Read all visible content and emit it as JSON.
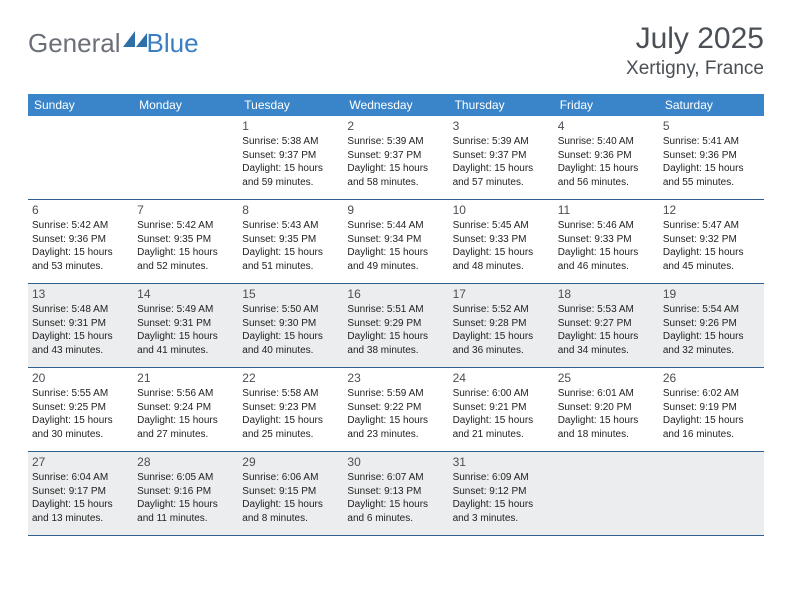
{
  "brand": {
    "part1": "General",
    "part2": "Blue"
  },
  "title": {
    "month_year": "July 2025",
    "location": "Xertigny, France"
  },
  "colors": {
    "header_bg": "#3a85c9",
    "header_text": "#ffffff",
    "border": "#2e5f8e",
    "shaded": "#ecedee",
    "brand_gray": "#6b7078",
    "brand_blue": "#3a7fc4",
    "text_dark": "#4a5056"
  },
  "weekdays": [
    "Sunday",
    "Monday",
    "Tuesday",
    "Wednesday",
    "Thursday",
    "Friday",
    "Saturday"
  ],
  "start_weekday_index": 2,
  "days": [
    {
      "n": 1,
      "sunrise": "5:38 AM",
      "sunset": "9:37 PM",
      "daylight": "15 hours and 59 minutes."
    },
    {
      "n": 2,
      "sunrise": "5:39 AM",
      "sunset": "9:37 PM",
      "daylight": "15 hours and 58 minutes."
    },
    {
      "n": 3,
      "sunrise": "5:39 AM",
      "sunset": "9:37 PM",
      "daylight": "15 hours and 57 minutes."
    },
    {
      "n": 4,
      "sunrise": "5:40 AM",
      "sunset": "9:36 PM",
      "daylight": "15 hours and 56 minutes."
    },
    {
      "n": 5,
      "sunrise": "5:41 AM",
      "sunset": "9:36 PM",
      "daylight": "15 hours and 55 minutes."
    },
    {
      "n": 6,
      "sunrise": "5:42 AM",
      "sunset": "9:36 PM",
      "daylight": "15 hours and 53 minutes."
    },
    {
      "n": 7,
      "sunrise": "5:42 AM",
      "sunset": "9:35 PM",
      "daylight": "15 hours and 52 minutes."
    },
    {
      "n": 8,
      "sunrise": "5:43 AM",
      "sunset": "9:35 PM",
      "daylight": "15 hours and 51 minutes."
    },
    {
      "n": 9,
      "sunrise": "5:44 AM",
      "sunset": "9:34 PM",
      "daylight": "15 hours and 49 minutes."
    },
    {
      "n": 10,
      "sunrise": "5:45 AM",
      "sunset": "9:33 PM",
      "daylight": "15 hours and 48 minutes."
    },
    {
      "n": 11,
      "sunrise": "5:46 AM",
      "sunset": "9:33 PM",
      "daylight": "15 hours and 46 minutes."
    },
    {
      "n": 12,
      "sunrise": "5:47 AM",
      "sunset": "9:32 PM",
      "daylight": "15 hours and 45 minutes."
    },
    {
      "n": 13,
      "sunrise": "5:48 AM",
      "sunset": "9:31 PM",
      "daylight": "15 hours and 43 minutes."
    },
    {
      "n": 14,
      "sunrise": "5:49 AM",
      "sunset": "9:31 PM",
      "daylight": "15 hours and 41 minutes."
    },
    {
      "n": 15,
      "sunrise": "5:50 AM",
      "sunset": "9:30 PM",
      "daylight": "15 hours and 40 minutes."
    },
    {
      "n": 16,
      "sunrise": "5:51 AM",
      "sunset": "9:29 PM",
      "daylight": "15 hours and 38 minutes."
    },
    {
      "n": 17,
      "sunrise": "5:52 AM",
      "sunset": "9:28 PM",
      "daylight": "15 hours and 36 minutes."
    },
    {
      "n": 18,
      "sunrise": "5:53 AM",
      "sunset": "9:27 PM",
      "daylight": "15 hours and 34 minutes."
    },
    {
      "n": 19,
      "sunrise": "5:54 AM",
      "sunset": "9:26 PM",
      "daylight": "15 hours and 32 minutes."
    },
    {
      "n": 20,
      "sunrise": "5:55 AM",
      "sunset": "9:25 PM",
      "daylight": "15 hours and 30 minutes."
    },
    {
      "n": 21,
      "sunrise": "5:56 AM",
      "sunset": "9:24 PM",
      "daylight": "15 hours and 27 minutes."
    },
    {
      "n": 22,
      "sunrise": "5:58 AM",
      "sunset": "9:23 PM",
      "daylight": "15 hours and 25 minutes."
    },
    {
      "n": 23,
      "sunrise": "5:59 AM",
      "sunset": "9:22 PM",
      "daylight": "15 hours and 23 minutes."
    },
    {
      "n": 24,
      "sunrise": "6:00 AM",
      "sunset": "9:21 PM",
      "daylight": "15 hours and 21 minutes."
    },
    {
      "n": 25,
      "sunrise": "6:01 AM",
      "sunset": "9:20 PM",
      "daylight": "15 hours and 18 minutes."
    },
    {
      "n": 26,
      "sunrise": "6:02 AM",
      "sunset": "9:19 PM",
      "daylight": "15 hours and 16 minutes."
    },
    {
      "n": 27,
      "sunrise": "6:04 AM",
      "sunset": "9:17 PM",
      "daylight": "15 hours and 13 minutes."
    },
    {
      "n": 28,
      "sunrise": "6:05 AM",
      "sunset": "9:16 PM",
      "daylight": "15 hours and 11 minutes."
    },
    {
      "n": 29,
      "sunrise": "6:06 AM",
      "sunset": "9:15 PM",
      "daylight": "15 hours and 8 minutes."
    },
    {
      "n": 30,
      "sunrise": "6:07 AM",
      "sunset": "9:13 PM",
      "daylight": "15 hours and 6 minutes."
    },
    {
      "n": 31,
      "sunrise": "6:09 AM",
      "sunset": "9:12 PM",
      "daylight": "15 hours and 3 minutes."
    }
  ],
  "labels": {
    "sunrise": "Sunrise:",
    "sunset": "Sunset:",
    "daylight": "Daylight:"
  },
  "shaded_rows": [
    2,
    4
  ]
}
